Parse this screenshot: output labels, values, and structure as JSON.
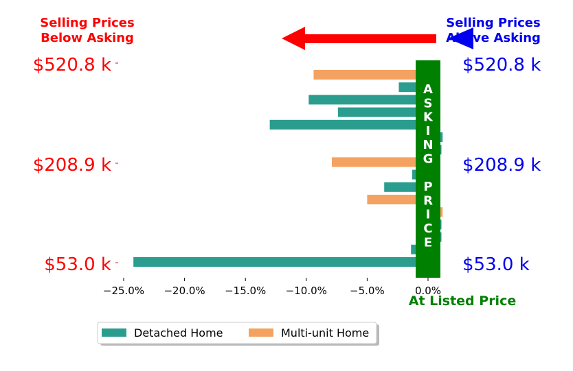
{
  "colors": {
    "detached": "#2a9d8f",
    "multi": "#f4a261",
    "below": "#ff0000",
    "above": "#0000ee",
    "asking": "#008000"
  },
  "header": {
    "below_line1": "Selling Prices",
    "below_line2": "Below Asking",
    "above_line1": "Selling Prices",
    "above_line2": "Above Asking"
  },
  "price_labels": {
    "left": [
      "$520.8 k",
      "$208.9 k",
      "$53.0 k"
    ],
    "right": [
      "$520.8 k",
      "$208.9 k",
      "$53.0 k"
    ]
  },
  "center_band": {
    "letters": [
      "A",
      "S",
      "K",
      "I",
      "N",
      "G",
      "",
      "P",
      "R",
      "I",
      "C",
      "E"
    ]
  },
  "listed_label": "At Listed Price",
  "chart_data": {
    "type": "bar",
    "orientation": "horizontal",
    "xlabel": "",
    "ylabel": "",
    "x_ticks": [
      "−25.0%",
      "−20.0%",
      "−15.0%",
      "−10.0%",
      "−5.0%",
      "0.0%"
    ],
    "x_tick_values": [
      -25,
      -20,
      -15,
      -10,
      -5,
      0
    ],
    "xlim": [
      -26.2,
      1.2
    ],
    "legend": {
      "placement": "bottom-left",
      "entries": [
        "Detached Home",
        "Multi-unit Home"
      ]
    },
    "bars": [
      {
        "value": -9.4,
        "series": "Multi-unit Home"
      },
      {
        "value": -2.4,
        "series": "Detached Home"
      },
      {
        "value": -9.8,
        "series": "Detached Home"
      },
      {
        "value": -7.4,
        "series": "Detached Home"
      },
      {
        "value": -13.0,
        "series": "Detached Home"
      },
      {
        "value": 1.2,
        "series": "Detached Home"
      },
      {
        "value": 1.1,
        "series": "Detached Home"
      },
      {
        "value": -7.9,
        "series": "Multi-unit Home"
      },
      {
        "value": -1.3,
        "series": "Detached Home"
      },
      {
        "value": -3.6,
        "series": "Detached Home"
      },
      {
        "value": -5.0,
        "series": "Multi-unit Home"
      },
      {
        "value": 1.2,
        "series": "Multi-unit Home"
      },
      {
        "value": 1.1,
        "series": "Detached Home"
      },
      {
        "value": 1.1,
        "series": "Detached Home"
      },
      {
        "value": -1.4,
        "series": "Detached Home"
      },
      {
        "value": -24.2,
        "series": "Detached Home"
      }
    ]
  }
}
